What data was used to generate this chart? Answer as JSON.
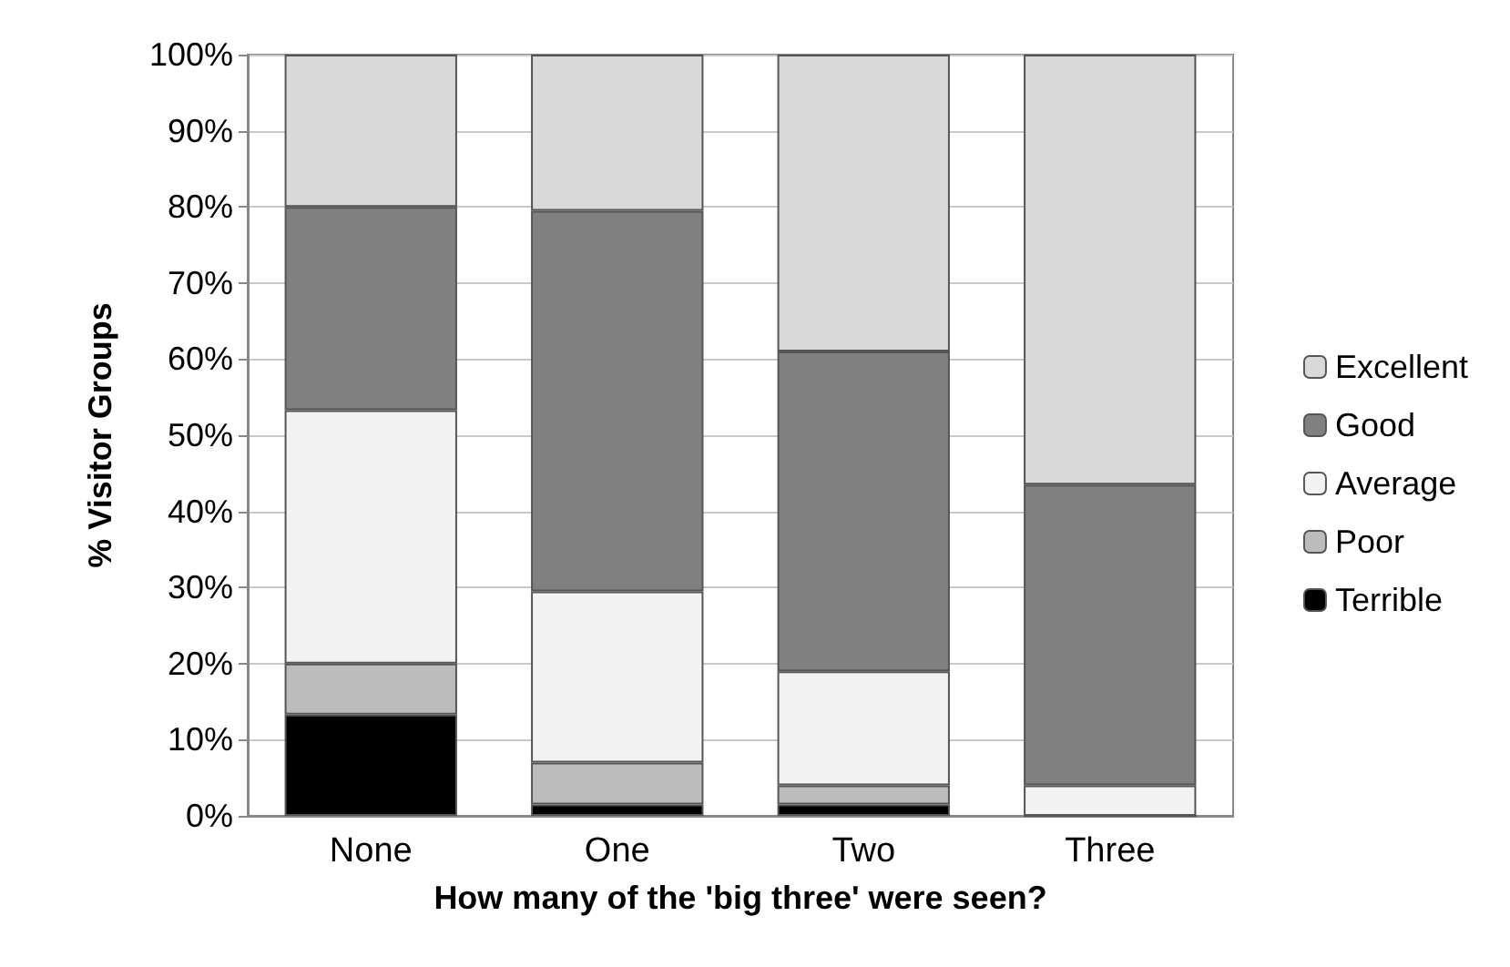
{
  "chart_data": {
    "type": "bar",
    "stacked": true,
    "xlabel": "How many of the 'big three' were seen?",
    "ylabel": "% Visitor Groups",
    "categories": [
      "None",
      "One",
      "Two",
      "Three"
    ],
    "series": [
      {
        "name": "Terrible",
        "color": "#000000",
        "values": [
          13.3,
          1.5,
          1.5,
          0
        ]
      },
      {
        "name": "Poor",
        "color": "#bcbcbc",
        "values": [
          6.7,
          5.5,
          2.5,
          0
        ]
      },
      {
        "name": "Average",
        "color": "#f2f2f2",
        "values": [
          33.3,
          22.5,
          15,
          4
        ]
      },
      {
        "name": "Good",
        "color": "#808080",
        "values": [
          26.7,
          50,
          42,
          39.5
        ]
      },
      {
        "name": "Excellent",
        "color": "#d9d9d9",
        "values": [
          20,
          20.5,
          39,
          56.5
        ]
      }
    ],
    "ylim": [
      0,
      100
    ],
    "yticks": [
      {
        "value": 0,
        "label": "0%"
      },
      {
        "value": 10,
        "label": "10%"
      },
      {
        "value": 20,
        "label": "20%"
      },
      {
        "value": 30,
        "label": "30%"
      },
      {
        "value": 40,
        "label": "40%"
      },
      {
        "value": 50,
        "label": "50%"
      },
      {
        "value": 60,
        "label": "60%"
      },
      {
        "value": 70,
        "label": "70%"
      },
      {
        "value": 80,
        "label": "80%"
      },
      {
        "value": 90,
        "label": "90%"
      },
      {
        "value": 100,
        "label": "100%"
      }
    ],
    "grid": true,
    "legend": "right"
  }
}
